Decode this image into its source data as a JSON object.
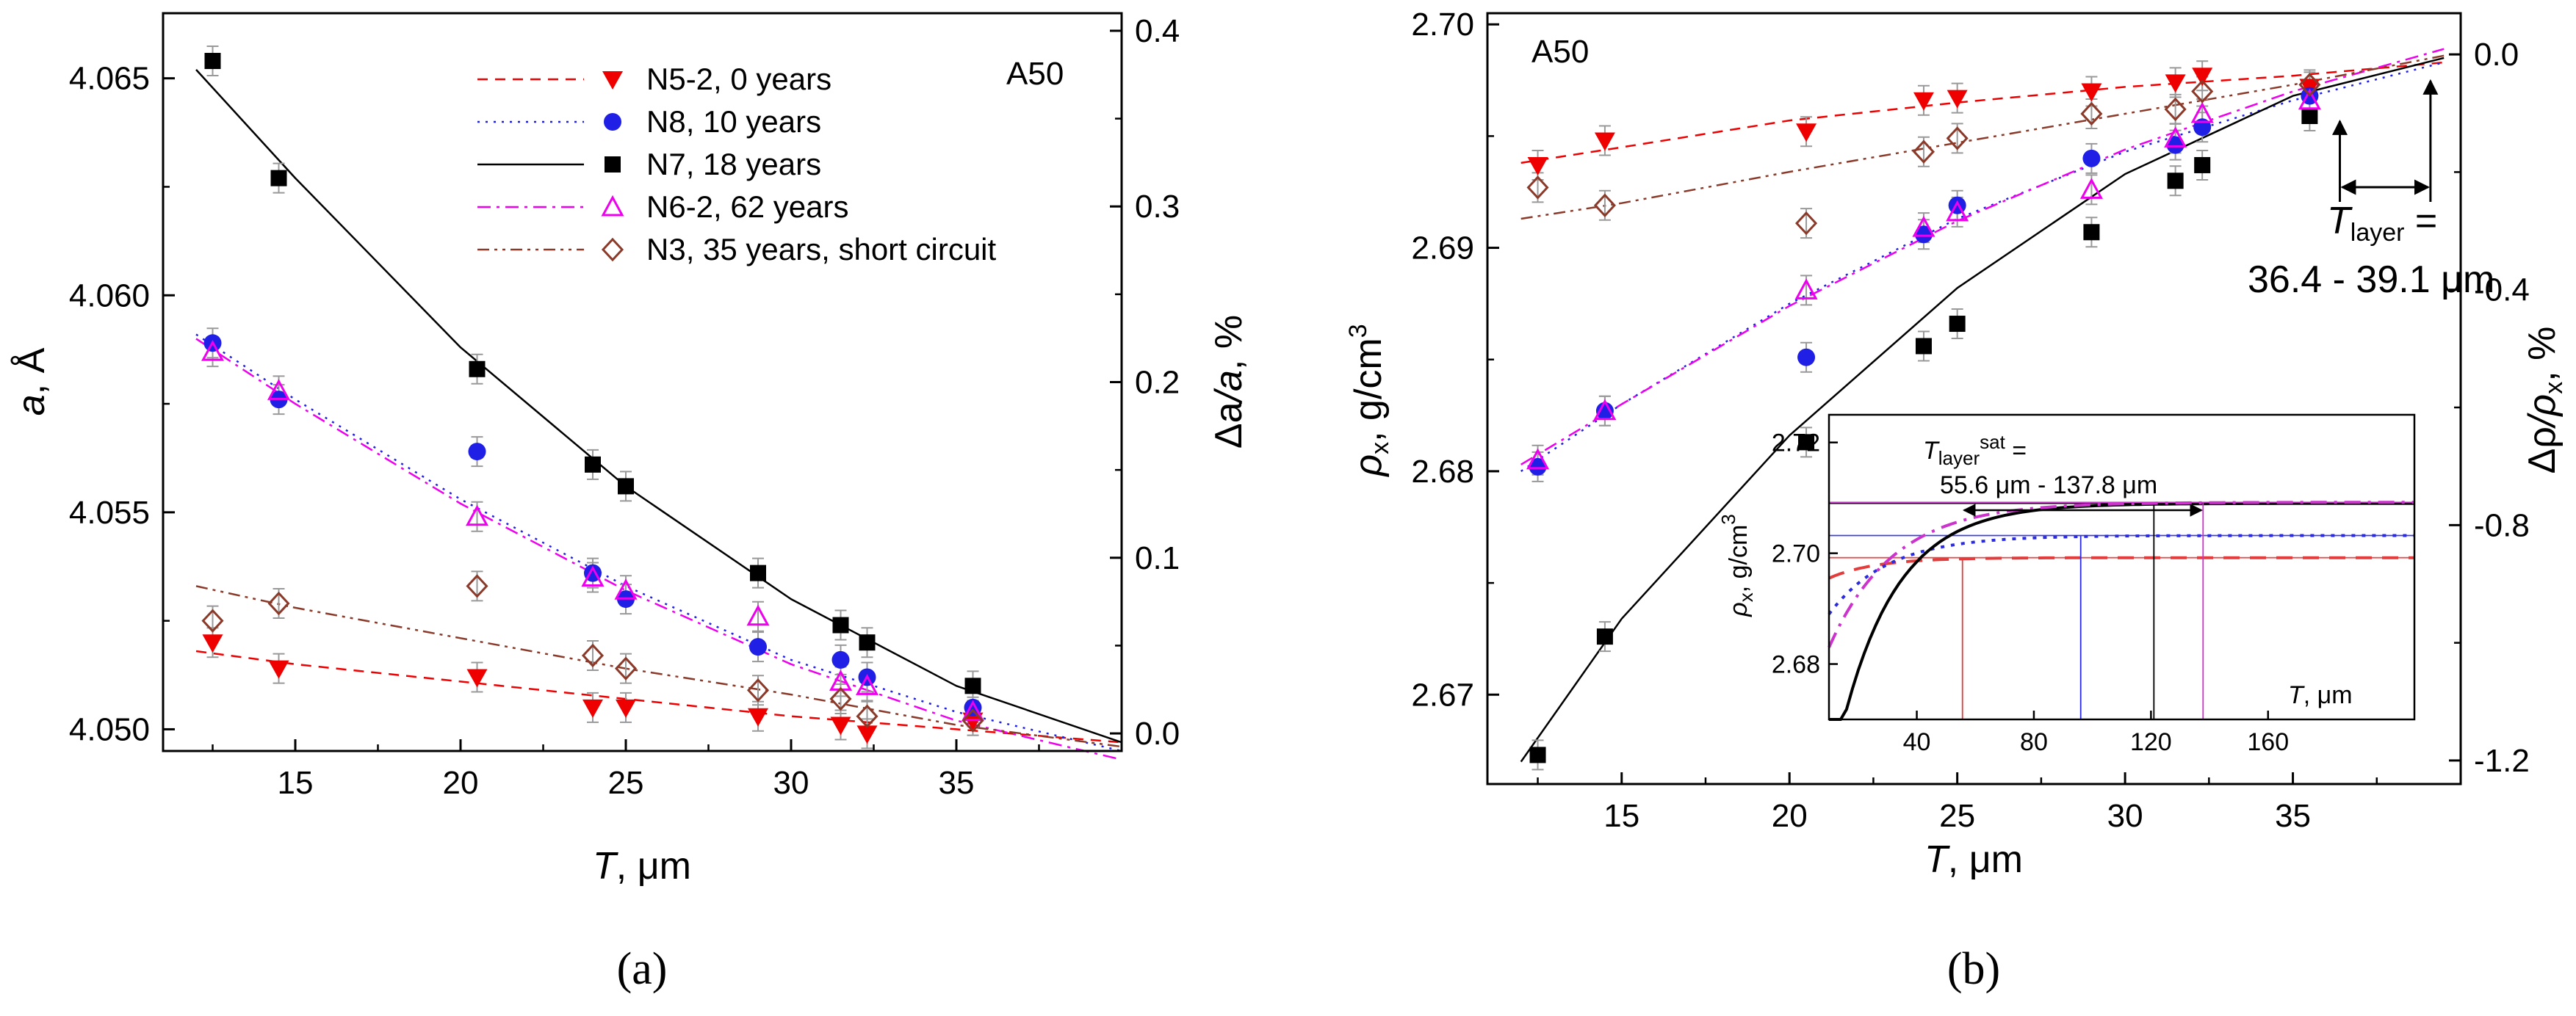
{
  "colors": {
    "N5-2": "#ee0000",
    "N8": "#1f1fe6",
    "N7": "#000000",
    "N6-2": "#ee00ee",
    "N3": "#8b3a2a",
    "inset_n52": "#e23c3c",
    "inset_n8": "#2a2ae0",
    "inset_n62": "#cc33cc"
  },
  "chart_data": [
    {
      "type": "scatter",
      "panel": "a",
      "caption": "(a)",
      "tag": "A50",
      "xlabel_var": "T",
      "xlabel_unit": ", μm",
      "ylabel_var": "a",
      "ylabel_unit": ", Å",
      "y2label_num": "Δa",
      "y2label_den": "a",
      "y2label_unit": ", %",
      "xlim": [
        11,
        40
      ],
      "ylim": [
        4.0495,
        4.0665
      ],
      "y2lim": [
        -0.01,
        0.41
      ],
      "xticks": [
        15,
        20,
        25,
        30,
        35
      ],
      "yticks": [
        4.05,
        4.055,
        4.06,
        4.065
      ],
      "ytick_labels": [
        "4.050",
        "4.055",
        "4.060",
        "4.065"
      ],
      "y2ticks": [
        0.0,
        0.1,
        0.2,
        0.3,
        0.4
      ],
      "y2tick_labels": [
        "0.0",
        "0.1",
        "0.2",
        "0.3",
        "0.4"
      ],
      "legend_position": "top-right",
      "series": [
        {
          "name": "N5-2, 0 years",
          "key": "N5-2",
          "marker": "triangle-down",
          "line": "dashed",
          "x": [
            12.5,
            14.5,
            20.5,
            24,
            25,
            29,
            31.5,
            32.3,
            35.5
          ],
          "y": [
            4.052,
            4.0514,
            4.0512,
            4.0505,
            4.0505,
            4.0503,
            4.0501,
            4.0499,
            4.0502
          ],
          "fit_x": [
            12,
            15,
            20,
            25,
            30,
            35,
            40
          ],
          "fit_y": [
            4.0518,
            4.0515,
            4.0511,
            4.0507,
            4.0503,
            4.05,
            4.0497
          ]
        },
        {
          "name": "N8, 10 years",
          "key": "N8",
          "marker": "circle",
          "line": "dotted",
          "x": [
            12.5,
            14.5,
            20.5,
            24,
            25,
            29,
            31.5,
            32.3,
            35.5
          ],
          "y": [
            4.0589,
            4.0576,
            4.0564,
            4.0536,
            4.053,
            4.0519,
            4.0516,
            4.0512,
            4.0505
          ],
          "fit_x": [
            12,
            15,
            20,
            25,
            30,
            35,
            40
          ],
          "fit_y": [
            4.0591,
            4.0576,
            4.0553,
            4.0533,
            4.0516,
            4.0504,
            4.0495
          ]
        },
        {
          "name": "N7, 18 years",
          "key": "N7",
          "marker": "square",
          "line": "solid",
          "x": [
            12.5,
            14.5,
            20.5,
            24,
            25,
            29,
            31.5,
            32.3,
            35.5
          ],
          "y": [
            4.0654,
            4.0627,
            4.0583,
            4.0561,
            4.0556,
            4.0536,
            4.0524,
            4.052,
            4.051
          ],
          "fit_x": [
            12,
            15,
            20,
            25,
            30,
            35,
            40
          ],
          "fit_y": [
            4.0652,
            4.0627,
            4.0588,
            4.0556,
            4.053,
            4.051,
            4.0497
          ]
        },
        {
          "name": "N6-2, 62 years",
          "key": "N6-2",
          "marker": "triangle-up-open",
          "line": "dashdot",
          "x": [
            12.5,
            14.5,
            20.5,
            24,
            25,
            29,
            31.5,
            32.3,
            35.5
          ],
          "y": [
            4.0587,
            4.0578,
            4.0549,
            4.0535,
            4.0532,
            4.0526,
            4.0511,
            4.051,
            4.0504
          ],
          "fit_x": [
            12,
            15,
            20,
            25,
            30,
            35,
            40
          ],
          "fit_y": [
            4.059,
            4.0575,
            4.0552,
            4.0532,
            4.0515,
            4.0502,
            4.0493
          ]
        },
        {
          "name": "N3, 35 years, short circuit",
          "key": "N3",
          "marker": "diamond-open",
          "line": "dashdotdot",
          "x": [
            12.5,
            14.5,
            20.5,
            24,
            25,
            29,
            31.5,
            32.3,
            35.5
          ],
          "y": [
            4.0525,
            4.0529,
            4.0533,
            4.0517,
            4.0514,
            4.0509,
            4.0507,
            4.0503,
            4.0502
          ],
          "fit_x": [
            12,
            15,
            20,
            25,
            30,
            35,
            40
          ],
          "fit_y": [
            4.0533,
            4.0528,
            4.0521,
            4.0514,
            4.0508,
            4.0501,
            4.0496
          ]
        }
      ]
    },
    {
      "type": "scatter",
      "panel": "b",
      "caption": "(b)",
      "tag": "A50",
      "xlabel_var": "T",
      "xlabel_unit": ", μm",
      "ylabel_sym": "ρ",
      "ylabel_sub": "x",
      "ylabel_unit": ", g/cm",
      "ylabel_sup": "3",
      "y2label_num": "Δρ",
      "y2label_den": "ρ",
      "y2label_sub": "x",
      "y2label_unit": ", %",
      "xlim": [
        11,
        40
      ],
      "ylim": [
        2.666,
        2.7005
      ],
      "y2lim": [
        -1.24,
        0.07
      ],
      "xticks": [
        15,
        20,
        25,
        30,
        35
      ],
      "yticks": [
        2.67,
        2.68,
        2.69,
        2.7
      ],
      "ytick_labels": [
        "2.67",
        "2.68",
        "2.69",
        "2.70"
      ],
      "y2ticks": [
        -1.2,
        -0.8,
        -0.4,
        0.0
      ],
      "y2tick_labels": [
        "-1.2",
        "-0.8",
        "-0.4",
        "0.0"
      ],
      "annotation": {
        "var": "T",
        "sub": "layer",
        "eq": " =",
        "range": "36.4 - 39.1 μm",
        "x_from": 36.4,
        "x_to": 39.1
      },
      "series": [
        {
          "key": "N5-2",
          "marker": "triangle-down",
          "line": "dashed",
          "x": [
            12.5,
            14.5,
            20.5,
            24,
            25,
            29,
            31.5,
            32.3,
            35.5
          ],
          "y": [
            2.6937,
            2.6948,
            2.6952,
            2.6966,
            2.6967,
            2.697,
            2.6974,
            2.6977,
            2.6972
          ],
          "fit_x": [
            12,
            15,
            20,
            25,
            30,
            35,
            39.5
          ],
          "fit_y": [
            2.6938,
            2.6945,
            2.6957,
            2.6965,
            2.6972,
            2.6977,
            2.6983
          ]
        },
        {
          "key": "N8",
          "marker": "circle",
          "line": "dotted",
          "x": [
            12.5,
            14.5,
            20.5,
            24,
            25,
            29,
            31.5,
            32.3,
            35.5
          ],
          "y": [
            2.6802,
            2.6827,
            2.6851,
            2.6906,
            2.6919,
            2.694,
            2.6946,
            2.6954,
            2.6968
          ],
          "fit_x": [
            12,
            15,
            20,
            25,
            30,
            35,
            39.5
          ],
          "fit_y": [
            2.68,
            2.683,
            2.6875,
            2.6913,
            2.6943,
            2.6966,
            2.6983
          ]
        },
        {
          "key": "N7",
          "marker": "square",
          "line": "solid",
          "x": [
            12.5,
            14.5,
            20.5,
            24,
            25,
            29,
            31.5,
            32.3,
            35.5
          ],
          "y": [
            2.6673,
            2.6726,
            2.6813,
            2.6856,
            2.6866,
            2.6907,
            2.693,
            2.6937,
            2.6959
          ],
          "fit_x": [
            12,
            15,
            20,
            25,
            30,
            35,
            39.5
          ],
          "fit_y": [
            2.667,
            2.6734,
            2.6816,
            2.6882,
            2.6933,
            2.6968,
            2.6985
          ]
        },
        {
          "key": "N6-2",
          "marker": "triangle-up-open",
          "line": "dashdot",
          "x": [
            12.5,
            14.5,
            20.5,
            24,
            25,
            29,
            31.5,
            32.3,
            35.5
          ],
          "y": [
            2.6805,
            2.6827,
            2.6881,
            2.6909,
            2.6916,
            2.6926,
            2.6949,
            2.696,
            2.6966
          ],
          "fit_x": [
            12,
            15,
            20,
            25,
            30,
            35,
            39.5
          ],
          "fit_y": [
            2.6803,
            2.683,
            2.6874,
            2.6912,
            2.6944,
            2.697,
            2.6989
          ]
        },
        {
          "key": "N3",
          "marker": "diamond-open",
          "line": "dashdotdot",
          "x": [
            12.5,
            14.5,
            20.5,
            24,
            25,
            29,
            31.5,
            32.3,
            35.5
          ],
          "y": [
            2.6927,
            2.6919,
            2.6911,
            2.6943,
            2.6949,
            2.696,
            2.6962,
            2.697,
            2.6973
          ],
          "fit_x": [
            12,
            15,
            20,
            25,
            30,
            35,
            39.5
          ],
          "fit_y": [
            2.6913,
            2.692,
            2.6934,
            2.6947,
            2.696,
            2.6973,
            2.6986
          ]
        }
      ]
    }
  ],
  "inset": {
    "xlabel_var": "T",
    "xlabel_unit": ", μm",
    "ylabel_sym": "ρ",
    "ylabel_sub": "x",
    "ylabel_unit": ", g/cm",
    "ylabel_sup": "3",
    "xlim": [
      10,
      210
    ],
    "ylim": [
      2.67,
      2.725
    ],
    "xticks": [
      40,
      80,
      120,
      160
    ],
    "yticks": [
      2.68,
      2.7,
      2.72
    ],
    "ytick_labels": [
      "2.68",
      "2.70",
      "2.72"
    ],
    "note_var": "T",
    "note_sub": "layer",
    "note_sup": "sat",
    "note_eq": " =",
    "note_range": "55.6 μm - 137.8 μm",
    "note_arrow_from": 55.6,
    "note_arrow_to": 137.8,
    "curves": [
      {
        "key": "N5-2",
        "saturation": 2.6992,
        "t_sat": 55.6,
        "y0": 2.6955,
        "tau": 16,
        "dash": "22 14",
        "width": 4
      },
      {
        "key": "N8",
        "saturation": 2.7032,
        "t_sat": 96,
        "y0": 2.689,
        "tau": 20,
        "dash": "5 9",
        "width": 4
      },
      {
        "key": "N7",
        "saturation": 2.709,
        "t_sat": 121,
        "y0": 2.658,
        "tau": 19,
        "dash": "",
        "width": 4
      },
      {
        "key": "N6-2",
        "saturation": 2.7092,
        "t_sat": 137.8,
        "y0": 2.683,
        "tau": 22,
        "dash": "22 10 4 10",
        "width": 4
      }
    ]
  }
}
